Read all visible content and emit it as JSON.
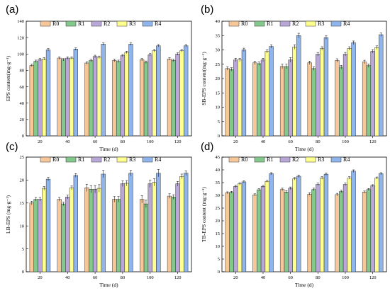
{
  "legend_labels": [
    "R0",
    "R1",
    "R2",
    "R3",
    "R4"
  ],
  "series_colors": [
    "#f7c79a",
    "#84c98c",
    "#b9a7d8",
    "#ffff8e",
    "#8fb5ec"
  ],
  "x_label": "Time (d)",
  "chart_data": [
    {
      "type": "bar",
      "panel_label": "(a)",
      "ylabel": "EPS content(mg·g⁻¹)",
      "ylim": [
        0,
        140
      ],
      "yticks": [
        0,
        20,
        40,
        60,
        80,
        100,
        120,
        140
      ],
      "categories": [
        "20",
        "40",
        "60",
        "80",
        "100",
        "120"
      ],
      "series": [
        {
          "name": "R0",
          "values": [
            86,
            95,
            89,
            92,
            93,
            94
          ]
        },
        {
          "name": "R1",
          "values": [
            91,
            93,
            92,
            91,
            90,
            92
          ]
        },
        {
          "name": "R2",
          "values": [
            93,
            95,
            97,
            98,
            99,
            100
          ]
        },
        {
          "name": "R3",
          "values": [
            94,
            95,
            96,
            102,
            104,
            104
          ]
        },
        {
          "name": "R4",
          "values": [
            105,
            106,
            112,
            112,
            110,
            110
          ]
        }
      ],
      "errors": [
        1.5,
        1.5,
        1.5,
        1.5,
        1.5,
        1.5
      ]
    },
    {
      "type": "bar",
      "panel_label": "(b)",
      "ylabel": "SB-EPS content(mg·g⁻¹)",
      "ylim": [
        0,
        40
      ],
      "yticks": [
        0,
        5,
        10,
        15,
        20,
        25,
        30,
        35,
        40
      ],
      "categories": [
        "20",
        "40",
        "60",
        "80",
        "100",
        "120"
      ],
      "series": [
        {
          "name": "R0",
          "values": [
            23.5,
            25.5,
            24.2,
            25.5,
            26.3,
            25.8
          ]
        },
        {
          "name": "R1",
          "values": [
            23.2,
            25.2,
            24.2,
            23.5,
            24.0,
            24.5
          ]
        },
        {
          "name": "R2",
          "values": [
            26.5,
            26.5,
            26.5,
            28.5,
            28.5,
            29.5
          ]
        },
        {
          "name": "R3",
          "values": [
            26.5,
            29.5,
            31.0,
            30.5,
            30.5,
            30.8
          ]
        },
        {
          "name": "R4",
          "values": [
            30.0,
            31.2,
            35.0,
            34.3,
            32.5,
            35.3
          ]
        }
      ],
      "errors": [
        0.6,
        0.6,
        0.8,
        0.6,
        0.6,
        0.6
      ]
    },
    {
      "type": "bar",
      "panel_label": "(c)",
      "ylabel": "LB-EPS (mg·g⁻¹)",
      "ylim": [
        0,
        25
      ],
      "yticks": [
        0,
        5,
        10,
        15,
        20,
        25
      ],
      "categories": [
        "20",
        "40",
        "60",
        "80",
        "100",
        "120"
      ],
      "series": [
        {
          "name": "R0",
          "values": [
            15.0,
            15.8,
            18.3,
            15.8,
            15.8,
            16.5
          ]
        },
        {
          "name": "R1",
          "values": [
            15.8,
            14.8,
            18.0,
            15.8,
            14.8,
            16.3
          ]
        },
        {
          "name": "R2",
          "values": [
            15.8,
            16.3,
            18.0,
            19.2,
            19.2,
            19.2
          ]
        },
        {
          "name": "R3",
          "values": [
            18.2,
            18.3,
            18.2,
            19.3,
            19.5,
            20.8
          ]
        },
        {
          "name": "R4",
          "values": [
            20.2,
            21.0,
            21.3,
            21.5,
            21.5,
            21.5
          ]
        }
      ],
      "errors": [
        0.4,
        0.4,
        0.8,
        0.6,
        0.8,
        0.5
      ]
    },
    {
      "type": "bar",
      "panel_label": "(d)",
      "ylabel": "TB-EPS content (mg·g⁻¹)",
      "ylim": [
        0,
        45
      ],
      "yticks": [
        0,
        5,
        10,
        15,
        20,
        25,
        30,
        35,
        40,
        45
      ],
      "categories": [
        "20",
        "40",
        "60",
        "80",
        "100",
        "120"
      ],
      "series": [
        {
          "name": "R0",
          "values": [
            31.0,
            30.2,
            32.3,
            30.5,
            30.3,
            31.3
          ]
        },
        {
          "name": "R1",
          "values": [
            31.2,
            32.2,
            31.3,
            32.3,
            31.5,
            32.3
          ]
        },
        {
          "name": "R2",
          "values": [
            33.5,
            33.5,
            32.8,
            34.3,
            34.3,
            33.8
          ]
        },
        {
          "name": "R3",
          "values": [
            34.5,
            35.5,
            36.5,
            36.8,
            36.8,
            36.8
          ]
        },
        {
          "name": "R4",
          "values": [
            35.3,
            38.5,
            37.5,
            38.3,
            39.5,
            38.5
          ]
        }
      ],
      "errors": [
        0.4,
        0.4,
        0.5,
        0.5,
        0.5,
        0.4
      ]
    }
  ]
}
